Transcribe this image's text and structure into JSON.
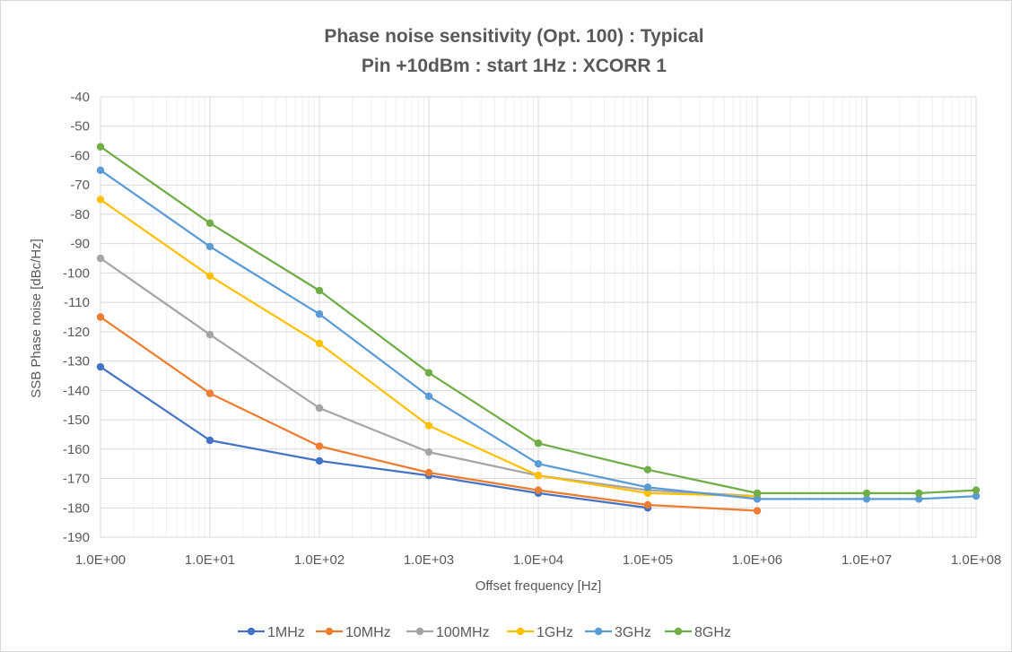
{
  "chart_data": {
    "type": "line",
    "title": "Phase noise sensitivity (Opt. 100) : Typical",
    "subtitle": "Pin +10dBm : start 1Hz : XCORR 1",
    "xlabel": "Offset frequency [Hz]",
    "ylabel": "SSB Phase noise [dBc/Hz]",
    "x_scale": "log",
    "xlim": [
      1,
      100000000
    ],
    "ylim": [
      -190,
      -40
    ],
    "x_ticks": [
      1,
      10,
      100,
      1000,
      10000,
      100000,
      1000000,
      10000000,
      100000000
    ],
    "x_tick_labels": [
      "1.0E+00",
      "1.0E+01",
      "1.0E+02",
      "1.0E+03",
      "1.0E+04",
      "1.0E+05",
      "1.0E+06",
      "1.0E+07",
      "1.0E+08"
    ],
    "y_ticks": [
      -40,
      -50,
      -60,
      -70,
      -80,
      -90,
      -100,
      -110,
      -120,
      -130,
      -140,
      -150,
      -160,
      -170,
      -180,
      -190
    ],
    "y_tick_labels": [
      "-40",
      "-50",
      "-60",
      "-70",
      "-80",
      "-90",
      "-100",
      "-110",
      "-120",
      "-130",
      "-140",
      "-150",
      "-160",
      "-170",
      "-180",
      "-190"
    ],
    "grid": true,
    "legend_position": "bottom",
    "series": [
      {
        "name": "1MHz",
        "color": "#4472C4",
        "x": [
          1,
          10,
          100,
          1000,
          10000,
          100000
        ],
        "y": [
          -132,
          -157,
          -164,
          -169,
          -175,
          -180
        ]
      },
      {
        "name": "10MHz",
        "color": "#ED7D31",
        "x": [
          1,
          10,
          100,
          1000,
          10000,
          100000,
          1000000
        ],
        "y": [
          -115,
          -141,
          -159,
          -168,
          -174,
          -179,
          -181
        ]
      },
      {
        "name": "100MHz",
        "color": "#A5A5A5",
        "x": [
          1,
          10,
          100,
          1000,
          10000,
          100000,
          1000000
        ],
        "y": [
          -95,
          -121,
          -146,
          -161,
          -169,
          -174,
          -176
        ]
      },
      {
        "name": "1GHz",
        "color": "#FFC000",
        "x": [
          1,
          10,
          100,
          1000,
          10000,
          100000,
          1000000
        ],
        "y": [
          -75,
          -101,
          -124,
          -152,
          -169,
          -175,
          -176
        ]
      },
      {
        "name": "3GHz",
        "color": "#5B9BD5",
        "x": [
          1,
          10,
          100,
          1000,
          10000,
          100000,
          1000000,
          10000000,
          30000000,
          100000000
        ],
        "y": [
          -65,
          -91,
          -114,
          -142,
          -165,
          -173,
          -177,
          -177,
          -177,
          -176
        ]
      },
      {
        "name": "8GHz",
        "color": "#70AD47",
        "x": [
          1,
          10,
          100,
          1000,
          10000,
          100000,
          1000000,
          10000000,
          30000000,
          100000000
        ],
        "y": [
          -57,
          -83,
          -106,
          -134,
          -158,
          -167,
          -175,
          -175,
          -175,
          -174
        ]
      }
    ]
  }
}
